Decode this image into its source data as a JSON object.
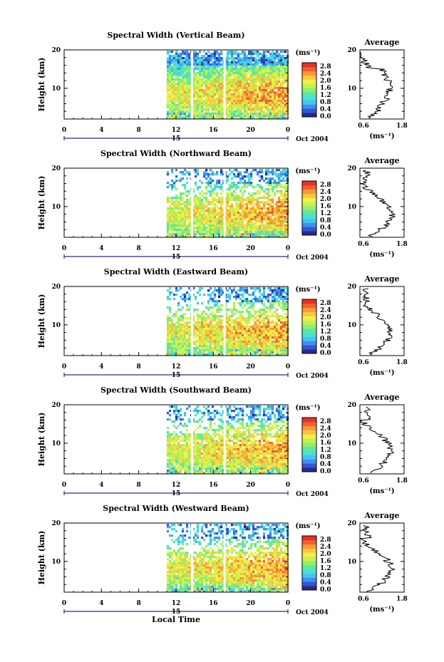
{
  "colors": {
    "scale": [
      "#2a2a88",
      "#3355d8",
      "#3f8ef0",
      "#44c4f0",
      "#49e0d8",
      "#5ee6a0",
      "#8ef06e",
      "#c8f050",
      "#f0f048",
      "#f8c840",
      "#f89838",
      "#f06030",
      "#e83028"
    ],
    "line": "#000000",
    "time_axis": "#2a2a88"
  },
  "x_label": "Local Time",
  "chart_data": [
    {
      "type": "heatmap",
      "title": "Spectral Width (Vertical Beam)",
      "ylabel": "Height (km)",
      "x_ticks": [
        "0",
        "4",
        "8",
        "12",
        "16",
        "20",
        "0"
      ],
      "day_label": "15",
      "date_label": "Oct 2004",
      "xlim": [
        0,
        24
      ],
      "ylim": [
        2,
        20
      ],
      "y_ticks": [
        "10",
        "20"
      ],
      "data_start_hour": 11,
      "colorbar": {
        "unit": "(ms⁻¹)",
        "ticks": [
          "2.8",
          "2.4",
          "2.0",
          "1.6",
          "1.2",
          "0.8",
          "0.4",
          "0.0"
        ]
      },
      "average": {
        "title": "Average",
        "x_ticks": [
          "0.6",
          "1.8"
        ],
        "xlim": [
          0.6,
          1.8
        ],
        "xlabel": "(ms⁻¹)",
        "y_ticks": [
          "10",
          "20"
        ]
      }
    },
    {
      "type": "heatmap",
      "title": "Spectral Width (Northward Beam)",
      "ylabel": "Height (km)",
      "x_ticks": [
        "0",
        "4",
        "8",
        "12",
        "16",
        "20",
        "0"
      ],
      "day_label": "15",
      "date_label": "Oct 2004",
      "xlim": [
        0,
        24
      ],
      "ylim": [
        2,
        20
      ],
      "y_ticks": [
        "10",
        "20"
      ],
      "data_start_hour": 11,
      "colorbar": {
        "unit": "(ms⁻¹)",
        "ticks": [
          "2.8",
          "2.4",
          "2.0",
          "1.6",
          "1.2",
          "0.8",
          "0.4",
          "0.0"
        ]
      },
      "average": {
        "title": "Average",
        "x_ticks": [
          "0.6",
          "1.8"
        ],
        "xlim": [
          0.6,
          1.8
        ],
        "xlabel": "(ms⁻¹)",
        "y_ticks": [
          "10",
          "20"
        ]
      }
    },
    {
      "type": "heatmap",
      "title": "Spectral Width (Eastward Beam)",
      "ylabel": "Height (km)",
      "x_ticks": [
        "0",
        "4",
        "8",
        "12",
        "16",
        "20",
        "0"
      ],
      "day_label": "15",
      "date_label": "Oct 2004",
      "xlim": [
        0,
        24
      ],
      "ylim": [
        2,
        20
      ],
      "y_ticks": [
        "10",
        "20"
      ],
      "data_start_hour": 11,
      "colorbar": {
        "unit": "(ms⁻¹)",
        "ticks": [
          "2.8",
          "2.4",
          "2.0",
          "1.6",
          "1.2",
          "0.8",
          "0.4",
          "0.0"
        ]
      },
      "average": {
        "title": "Average",
        "x_ticks": [
          "0.6",
          "1.8"
        ],
        "xlim": [
          0.6,
          1.8
        ],
        "xlabel": "(ms⁻¹)",
        "y_ticks": [
          "10",
          "20"
        ]
      }
    },
    {
      "type": "heatmap",
      "title": "Spectral Width (Southward Beam)",
      "ylabel": "Height (km)",
      "x_ticks": [
        "0",
        "4",
        "8",
        "12",
        "16",
        "20",
        "0"
      ],
      "day_label": "15",
      "date_label": "Oct 2004",
      "xlim": [
        0,
        24
      ],
      "ylim": [
        2,
        20
      ],
      "y_ticks": [
        "10",
        "20"
      ],
      "data_start_hour": 11,
      "colorbar": {
        "unit": "(ms⁻¹)",
        "ticks": [
          "2.8",
          "2.4",
          "2.0",
          "1.6",
          "1.2",
          "0.8",
          "0.4",
          "0.0"
        ]
      },
      "average": {
        "title": "Average",
        "x_ticks": [
          "0.6",
          "1.8"
        ],
        "xlim": [
          0.6,
          1.8
        ],
        "xlabel": "(ms⁻¹)",
        "y_ticks": [
          "10",
          "20"
        ]
      }
    },
    {
      "type": "heatmap",
      "title": "Spectral Width (Westward Beam)",
      "ylabel": "Height (km)",
      "x_ticks": [
        "0",
        "4",
        "8",
        "12",
        "16",
        "20",
        "0"
      ],
      "day_label": "15",
      "date_label": "Oct 2004",
      "xlim": [
        0,
        24
      ],
      "ylim": [
        2,
        20
      ],
      "y_ticks": [
        "10",
        "20"
      ],
      "data_start_hour": 11,
      "colorbar": {
        "unit": "(ms⁻¹)",
        "ticks": [
          "2.8",
          "2.4",
          "2.0",
          "1.6",
          "1.2",
          "0.8",
          "0.4",
          "0.0"
        ]
      },
      "average": {
        "title": "Average",
        "x_ticks": [
          "0.6",
          "1.8"
        ],
        "xlim": [
          0.6,
          1.8
        ],
        "xlabel": "(ms⁻¹)",
        "y_ticks": [
          "10",
          "20"
        ]
      }
    }
  ]
}
